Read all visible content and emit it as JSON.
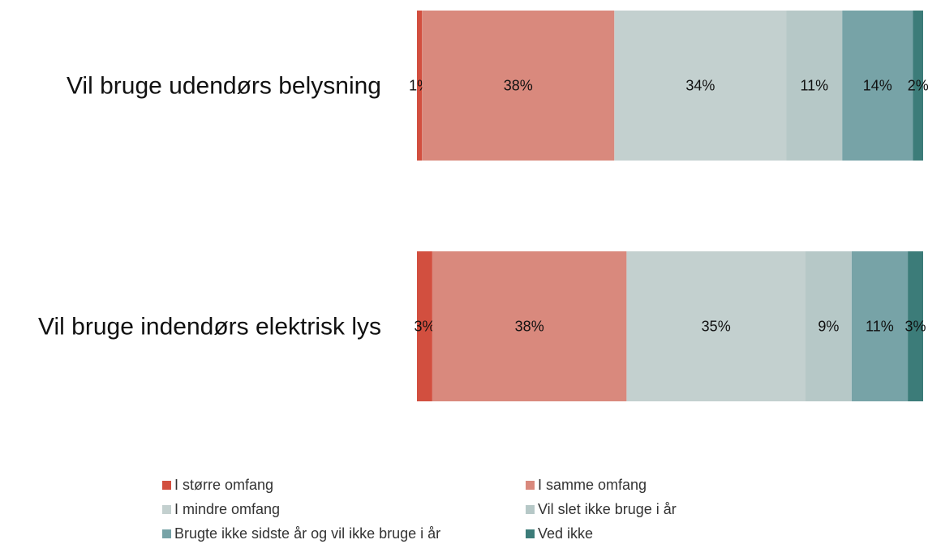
{
  "chart_data": {
    "type": "bar",
    "orientation": "horizontal",
    "stacked": true,
    "title": "",
    "xlabel": "",
    "ylabel": "",
    "xlim": [
      0,
      100
    ],
    "grid": false,
    "legend_position": "bottom",
    "categories": [
      "Vil bruge udendørs belysning",
      "Vil bruge indendørs elektrisk lys"
    ],
    "series": [
      {
        "name": "I større omfang",
        "color": "#d24f3f",
        "values": [
          1,
          3
        ],
        "labels": [
          "1%",
          "3%"
        ]
      },
      {
        "name": "I samme omfang",
        "color": "#d9897d",
        "values": [
          38,
          38
        ],
        "labels": [
          "38%",
          "38%"
        ]
      },
      {
        "name": "I mindre omfang",
        "color": "#c3d0cf",
        "values": [
          34,
          35
        ],
        "labels": [
          "34%",
          "35%"
        ]
      },
      {
        "name": "Vil slet ikke bruge i år",
        "color": "#b6c8c7",
        "values": [
          11,
          9
        ],
        "labels": [
          "11%",
          "9%"
        ]
      },
      {
        "name": "Brugte ikke sidste år og vil ikke bruge i år",
        "color": "#77a3a7",
        "values": [
          14,
          11
        ],
        "labels": [
          "14%",
          "11%"
        ]
      },
      {
        "name": "Ved ikke",
        "color": "#3c7c79",
        "values": [
          2,
          3
        ],
        "labels": [
          "2%",
          "3%"
        ]
      }
    ]
  }
}
